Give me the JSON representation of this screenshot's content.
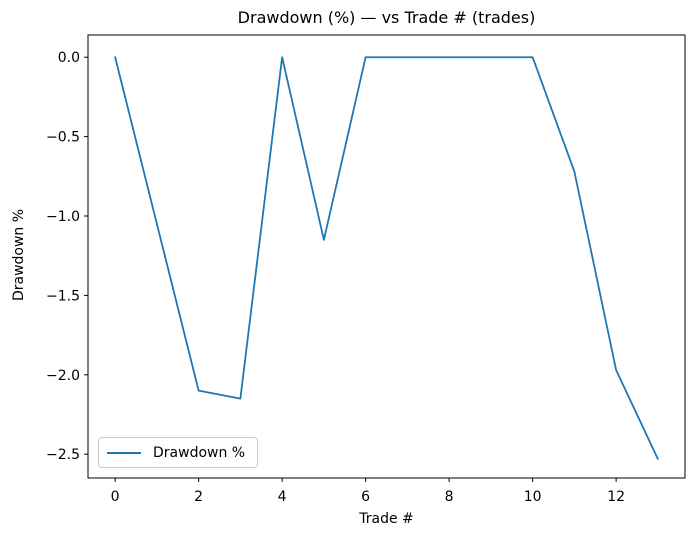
{
  "chart_data": {
    "type": "line",
    "title": "Drawdown (%) — vs Trade # (trades)",
    "xlabel": "Trade #",
    "ylabel": "Drawdown %",
    "x": [
      0,
      1,
      2,
      3,
      4,
      5,
      6,
      7,
      8,
      9,
      10,
      11,
      12,
      13
    ],
    "series": [
      {
        "name": "Drawdown %",
        "color": "#1f77b4",
        "values": [
          0.0,
          -1.05,
          -2.1,
          -2.15,
          0.0,
          -1.15,
          0.0,
          0.0,
          0.0,
          0.0,
          0.0,
          -0.72,
          -1.97,
          -2.53
        ]
      }
    ],
    "xlim": [
      -0.65,
      13.65
    ],
    "ylim": [
      -2.65,
      0.14
    ],
    "xticks": [
      0,
      2,
      4,
      6,
      8,
      10,
      12
    ],
    "xtick_labels": [
      "0",
      "2",
      "4",
      "6",
      "8",
      "10",
      "12"
    ],
    "yticks": [
      0.0,
      -0.5,
      -1.0,
      -1.5,
      -2.0,
      -2.5
    ],
    "ytick_labels": [
      "0.0",
      "−0.5",
      "−1.0",
      "−1.5",
      "−2.0",
      "−2.5"
    ],
    "grid": false,
    "legend": {
      "position": "lower left",
      "entries": [
        "Drawdown %"
      ]
    },
    "colors": {
      "series": "#1f77b4",
      "axis": "#000000",
      "background": "#ffffff",
      "legend_border": "#cccccc"
    }
  }
}
